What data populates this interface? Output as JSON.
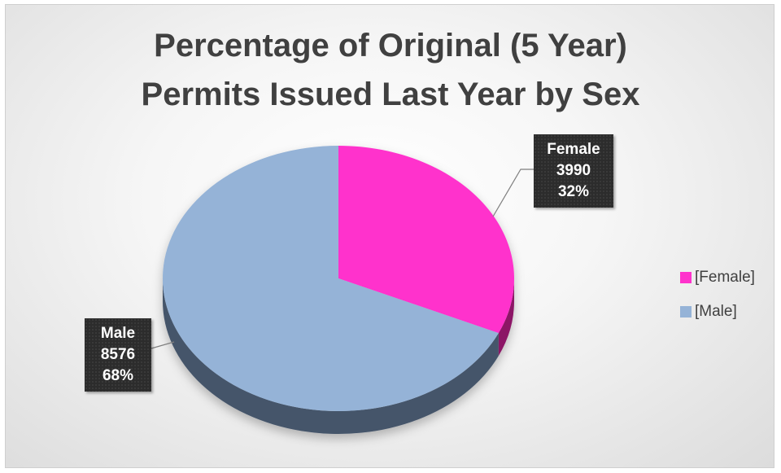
{
  "chart_data": {
    "type": "pie",
    "title": [
      "Percentage of Original (5 Year)",
      "Permits Issued Last Year by Sex"
    ],
    "slices": [
      {
        "category": "Female",
        "value": 3990,
        "percent_label": "32%",
        "color": "#ff33cc",
        "side_color": "#8c1466"
      },
      {
        "category": "Male",
        "value": 8576,
        "percent_label": "68%",
        "color": "#95b3d7",
        "side_color": "#45556b"
      }
    ],
    "legend": {
      "position": "right",
      "items": [
        {
          "label": "[Female]",
          "color": "#ff33cc"
        },
        {
          "label": "[Male]",
          "color": "#95b3d7"
        }
      ]
    },
    "style": "3d-pie"
  }
}
